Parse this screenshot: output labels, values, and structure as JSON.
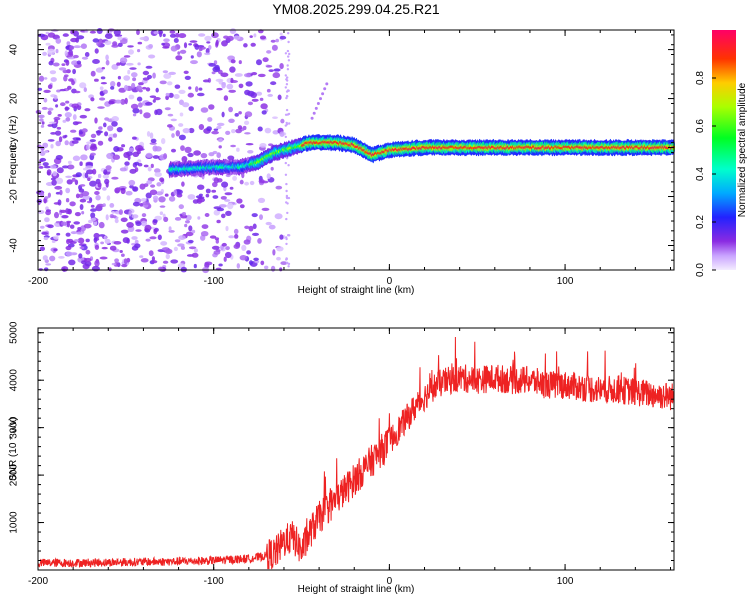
{
  "chart_data": [
    {
      "type": "heatmap",
      "title": "YM08.2025.299.04.25.R21",
      "xlabel": "Height of straight line (km)",
      "ylabel": "Frequency (Hz)",
      "xlim": [
        -200,
        162
      ],
      "ylim": [
        -50,
        48
      ],
      "xticks": [
        "-200",
        "-100",
        "0",
        "100"
      ],
      "yticks": [
        "40",
        "20",
        "0",
        "-20",
        "-40"
      ],
      "colorbar": {
        "label": "Normalized spectral amplitude",
        "range": [
          0,
          1
        ],
        "ticks": [
          "0.0",
          "0.2",
          "0.4",
          "0.6",
          "0.8"
        ]
      },
      "ridge": {
        "description_points_km_hz": [
          [
            -125,
            -9
          ],
          [
            -100,
            -8
          ],
          [
            -85,
            -8
          ],
          [
            -75,
            -6
          ],
          [
            -65,
            -2
          ],
          [
            -55,
            0
          ],
          [
            -45,
            2
          ],
          [
            -30,
            2
          ],
          [
            -20,
            1
          ],
          [
            -10,
            -3
          ],
          [
            0,
            -1
          ],
          [
            20,
            0
          ],
          [
            40,
            0
          ],
          [
            60,
            0
          ],
          [
            80,
            0
          ],
          [
            100,
            0
          ],
          [
            120,
            0
          ],
          [
            140,
            0
          ],
          [
            160,
            0
          ]
        ]
      }
    },
    {
      "type": "line",
      "xlabel": "Height of straight line (km)",
      "ylabel": "SNR (10 * v/v)",
      "xlim": [
        -200,
        162
      ],
      "ylim": [
        0,
        5100
      ],
      "xticks": [
        "-200",
        "-100",
        "0",
        "100"
      ],
      "yticks": [
        "5000",
        "4000",
        "3000",
        "2000",
        "1000"
      ],
      "color": "#ee2222",
      "series": [
        {
          "name": "SNR",
          "x": [
            -200,
            -180,
            -160,
            -140,
            -120,
            -100,
            -90,
            -80,
            -70,
            -65,
            -60,
            -55,
            -50,
            -45,
            -40,
            -35,
            -30,
            -25,
            -20,
            -15,
            -10,
            -5,
            0,
            5,
            10,
            15,
            20,
            25,
            30,
            40,
            50,
            60,
            70,
            80,
            90,
            100,
            110,
            120,
            130,
            140,
            150,
            162
          ],
          "values": [
            150,
            150,
            160,
            170,
            180,
            200,
            220,
            240,
            300,
            350,
            600,
            700,
            400,
            800,
            1100,
            1300,
            1500,
            1700,
            1900,
            2100,
            2300,
            2500,
            2700,
            2950,
            3200,
            3450,
            3650,
            3850,
            3950,
            4050,
            4000,
            4050,
            4000,
            4000,
            3900,
            3900,
            3850,
            3800,
            3800,
            3750,
            3700,
            3650
          ]
        }
      ]
    }
  ]
}
